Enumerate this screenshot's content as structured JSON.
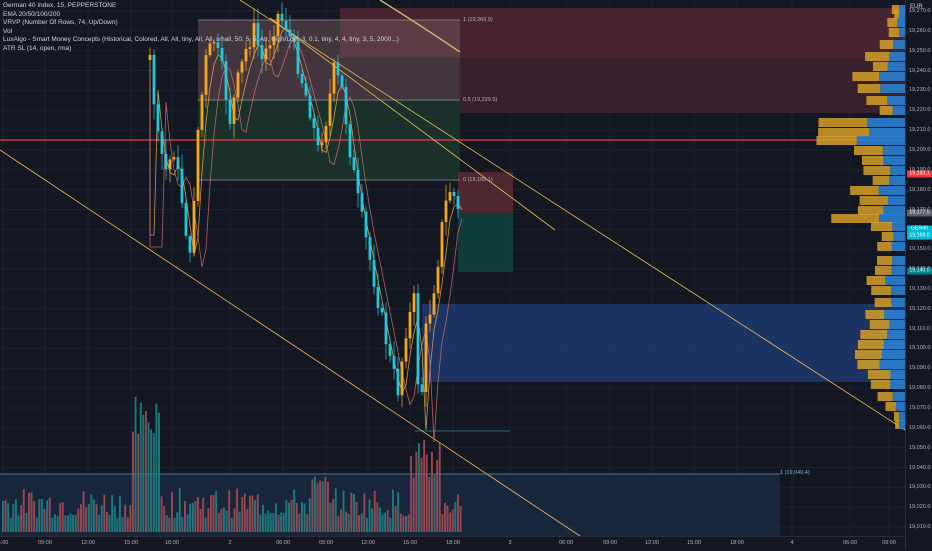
{
  "legend": {
    "symbol": "German 40 Index, 15, PEPPERSTONE",
    "indicators": [
      "EMA 20/50/100/200",
      "VRVP (Number Of Rows, 74, Up/Down)",
      "Vol",
      "LuxAlgo - Smart Money Concepts (Historical, Colored, All, All, tiny, All, All, small, 50, 5, 5, Atr, High/Low, 3, 0.1, tiny, 4, 4, tiny, 3, 5, 2000...)",
      "ATR SL (14, open, rma)"
    ]
  },
  "currency": "EUR",
  "y_axis": {
    "ticks": [
      "19,270.0",
      "19,260.0",
      "19,250.0",
      "19,240.0",
      "19,230.0",
      "19,220.0",
      "19,210.0",
      "19,200.0",
      "19,190.0",
      "19,180.0",
      "19,170.0",
      "19,160.0",
      "19,150.0",
      "19,140.0",
      "19,130.0",
      "19,120.0",
      "19,110.0",
      "19,100.0",
      "19,090.0",
      "19,080.0",
      "19,070.0",
      "19,060.0",
      "19,050.0",
      "19,040.0",
      "19,030.0",
      "19,020.0",
      "19,010.0"
    ]
  },
  "price_labels": {
    "red_tag": "19,193.1",
    "gray_tag": "19,177.5",
    "current_symbol": "GER40",
    "current_price": "19,169.0",
    "countdown": "05:11",
    "cyan_tag": "19,140.0"
  },
  "fib_labels": {
    "top": "1 (19,269.9)",
    "mid": "0.5 (19,229.5)",
    "zero": "0 (19,189.1)",
    "low": "1 (19,040.4)"
  },
  "x_axis": {
    "labels": [
      "6:00",
      "09:00",
      "12:00",
      "15:00",
      "18:00",
      "2",
      "06:00",
      "09:00",
      "12:00",
      "15:00",
      "18:00",
      "3",
      "06:00",
      "09:00",
      "12:00",
      "15:00",
      "18:00",
      "4",
      "06:00",
      "09:00"
    ]
  },
  "colors": {
    "background": "#131722",
    "bull_candle": "#f5a623",
    "bear_candle": "#26c6da",
    "resistance_line": "#f23645",
    "channel_line": "#f0c04a",
    "demand_zone": "#1e3a6e",
    "vrvp_up": "#d4a028",
    "vrvp_down": "#2b7fd0"
  }
}
